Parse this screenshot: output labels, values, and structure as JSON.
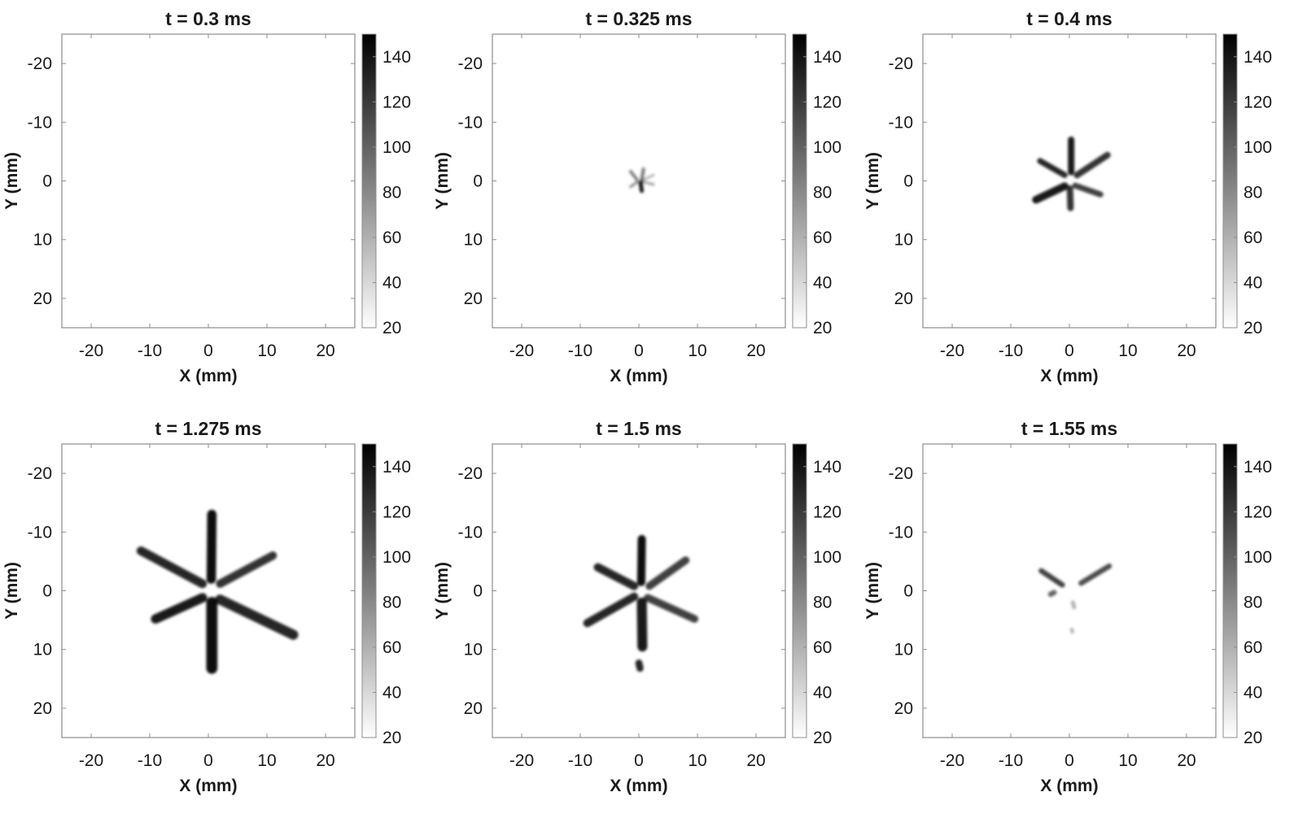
{
  "figure": {
    "colors": {
      "axis": "#8c8c8c",
      "spray": "#000000",
      "cb_low": "#ffffff",
      "cb_high": "#000000"
    }
  },
  "chart_data": [
    {
      "type": "heatmap",
      "title": "t = 0.3 ms",
      "xlabel": "X (mm)",
      "ylabel": "Y (mm)",
      "xlim": [
        -25,
        25
      ],
      "ylim": [
        -25,
        25
      ],
      "y_reversed": true,
      "xticks": [
        -20,
        -10,
        0,
        10,
        20
      ],
      "yticks": [
        -20,
        -10,
        0,
        10,
        20
      ],
      "colorbar": {
        "range": [
          20,
          150
        ],
        "ticks": [
          20,
          40,
          60,
          80,
          100,
          120,
          140
        ],
        "colormap": "white-to-black"
      },
      "grid": false,
      "plumes": []
    },
    {
      "type": "heatmap",
      "title": "t = 0.325 ms",
      "xlabel": "X (mm)",
      "ylabel": "Y (mm)",
      "xlim": [
        -25,
        25
      ],
      "ylim": [
        -25,
        25
      ],
      "y_reversed": true,
      "xticks": [
        -20,
        -10,
        0,
        10,
        20
      ],
      "yticks": [
        -20,
        -10,
        0,
        10,
        20
      ],
      "colorbar": {
        "range": [
          20,
          150
        ],
        "ticks": [
          20,
          40,
          60,
          80,
          100,
          120,
          140
        ],
        "colormap": "white-to-black"
      },
      "grid": false,
      "plumes": [
        {
          "x0": 0.5,
          "y0": -0.3,
          "x1": 0.8,
          "y1": -2.0,
          "w": 0.6,
          "o": 0.5
        },
        {
          "x0": 0.3,
          "y0": 0.3,
          "x1": 0.5,
          "y1": 1.7,
          "w": 0.7,
          "o": 0.9
        },
        {
          "x0": -0.3,
          "y0": -0.2,
          "x1": -1.4,
          "y1": -1.6,
          "w": 0.55,
          "o": 0.5
        },
        {
          "x0": -0.3,
          "y0": 0.2,
          "x1": -1.4,
          "y1": 1.0,
          "w": 0.5,
          "o": 0.4
        },
        {
          "x0": 0.5,
          "y0": -0.1,
          "x1": 2.5,
          "y1": -1.0,
          "w": 0.4,
          "o": 0.3
        },
        {
          "x0": 0.5,
          "y0": 0.1,
          "x1": 2.5,
          "y1": 0.6,
          "w": 0.45,
          "o": 0.35
        }
      ]
    },
    {
      "type": "heatmap",
      "title": "t = 0.4 ms",
      "xlabel": "X (mm)",
      "ylabel": "Y (mm)",
      "xlim": [
        -25,
        25
      ],
      "ylim": [
        -25,
        25
      ],
      "y_reversed": true,
      "xticks": [
        -20,
        -10,
        0,
        10,
        20
      ],
      "yticks": [
        -20,
        -10,
        0,
        10,
        20
      ],
      "colorbar": {
        "range": [
          20,
          150
        ],
        "ticks": [
          20,
          40,
          60,
          80,
          100,
          120,
          140
        ],
        "colormap": "white-to-black"
      },
      "grid": false,
      "plumes": [
        {
          "x0": 0.3,
          "y0": -1.5,
          "x1": 0.3,
          "y1": -7.0,
          "w": 1.1,
          "o": 0.9
        },
        {
          "x0": -0.8,
          "y0": -1.0,
          "x1": -5.0,
          "y1": -3.4,
          "w": 1.0,
          "o": 0.85
        },
        {
          "x0": 1.3,
          "y0": -1.0,
          "x1": 6.5,
          "y1": -4.4,
          "w": 1.1,
          "o": 0.8
        },
        {
          "x0": -0.8,
          "y0": 0.9,
          "x1": -5.7,
          "y1": 3.2,
          "w": 1.3,
          "o": 0.9
        },
        {
          "x0": 1.0,
          "y0": 0.8,
          "x1": 5.3,
          "y1": 2.3,
          "w": 1.0,
          "o": 0.75
        },
        {
          "x0": 0.1,
          "y0": 1.3,
          "x1": 0.2,
          "y1": 4.6,
          "w": 1.1,
          "o": 0.8
        }
      ]
    },
    {
      "type": "heatmap",
      "title": "t = 1.275 ms",
      "xlabel": "X (mm)",
      "ylabel": "Y (mm)",
      "xlim": [
        -25,
        25
      ],
      "ylim": [
        -25,
        25
      ],
      "y_reversed": true,
      "xticks": [
        -20,
        -10,
        0,
        10,
        20
      ],
      "yticks": [
        -20,
        -10,
        0,
        10,
        20
      ],
      "colorbar": {
        "range": [
          20,
          150
        ],
        "ticks": [
          20,
          40,
          60,
          80,
          100,
          120,
          140
        ],
        "colormap": "white-to-black"
      },
      "grid": false,
      "plumes": [
        {
          "x0": 0.5,
          "y0": -2.0,
          "x1": 0.6,
          "y1": -13.0,
          "w": 1.6,
          "o": 0.95
        },
        {
          "x0": -1.0,
          "y0": -1.2,
          "x1": -11.5,
          "y1": -6.8,
          "w": 1.5,
          "o": 0.85
        },
        {
          "x0": 2.0,
          "y0": -1.2,
          "x1": 11.0,
          "y1": -6.0,
          "w": 1.4,
          "o": 0.8
        },
        {
          "x0": -1.0,
          "y0": 1.2,
          "x1": -9.0,
          "y1": 4.8,
          "w": 1.6,
          "o": 0.9
        },
        {
          "x0": 2.0,
          "y0": 1.5,
          "x1": 14.5,
          "y1": 7.5,
          "w": 1.7,
          "o": 0.85
        },
        {
          "x0": 0.6,
          "y0": 2.0,
          "x1": 0.6,
          "y1": 13.2,
          "w": 1.9,
          "o": 0.95
        }
      ]
    },
    {
      "type": "heatmap",
      "title": "t = 1.5 ms",
      "xlabel": "X (mm)",
      "ylabel": "Y (mm)",
      "xlim": [
        -25,
        25
      ],
      "ylim": [
        -25,
        25
      ],
      "y_reversed": true,
      "xticks": [
        -20,
        -10,
        0,
        10,
        20
      ],
      "yticks": [
        -20,
        -10,
        0,
        10,
        20
      ],
      "colorbar": {
        "range": [
          20,
          150
        ],
        "ticks": [
          20,
          40,
          60,
          80,
          100,
          120,
          140
        ],
        "colormap": "white-to-black"
      },
      "grid": false,
      "plumes": [
        {
          "x0": 0.4,
          "y0": -1.5,
          "x1": 0.5,
          "y1": -8.8,
          "w": 1.4,
          "o": 0.95
        },
        {
          "x0": -0.8,
          "y0": -0.8,
          "x1": -7.0,
          "y1": -4.0,
          "w": 1.4,
          "o": 0.85
        },
        {
          "x0": 1.8,
          "y0": -0.8,
          "x1": 8.0,
          "y1": -5.2,
          "w": 1.3,
          "o": 0.75
        },
        {
          "x0": -0.8,
          "y0": 1.0,
          "x1": -8.8,
          "y1": 5.5,
          "w": 1.4,
          "o": 0.85
        },
        {
          "x0": 1.5,
          "y0": 1.2,
          "x1": 9.5,
          "y1": 4.8,
          "w": 1.3,
          "o": 0.75
        },
        {
          "x0": 0.5,
          "y0": 2.0,
          "x1": 0.6,
          "y1": 9.5,
          "w": 1.7,
          "o": 0.9
        },
        {
          "x0": 0.0,
          "y0": 12.3,
          "x1": 0.2,
          "y1": 13.2,
          "w": 1.2,
          "o": 0.85
        }
      ]
    },
    {
      "type": "heatmap",
      "title": "t = 1.55 ms",
      "xlabel": "X (mm)",
      "ylabel": "Y (mm)",
      "xlim": [
        -25,
        25
      ],
      "ylim": [
        -25,
        25
      ],
      "y_reversed": true,
      "xticks": [
        -20,
        -10,
        0,
        10,
        20
      ],
      "yticks": [
        -20,
        -10,
        0,
        10,
        20
      ],
      "colorbar": {
        "range": [
          20,
          150
        ],
        "ticks": [
          20,
          40,
          60,
          80,
          100,
          120,
          140
        ],
        "colormap": "white-to-black"
      },
      "grid": false,
      "plumes": [
        {
          "x0": -1.2,
          "y0": -1.0,
          "x1": -4.8,
          "y1": -3.4,
          "w": 0.9,
          "o": 0.75
        },
        {
          "x0": 2.0,
          "y0": -1.3,
          "x1": 6.8,
          "y1": -4.2,
          "w": 0.9,
          "o": 0.7
        },
        {
          "x0": -2.6,
          "y0": 0.3,
          "x1": -3.2,
          "y1": 0.6,
          "w": 0.9,
          "o": 0.6
        },
        {
          "x0": 0.6,
          "y0": 2.0,
          "x1": 0.8,
          "y1": 2.8,
          "w": 0.7,
          "o": 0.3
        },
        {
          "x0": 0.4,
          "y0": 6.6,
          "x1": 0.5,
          "y1": 7.0,
          "w": 0.6,
          "o": 0.3
        }
      ]
    }
  ]
}
